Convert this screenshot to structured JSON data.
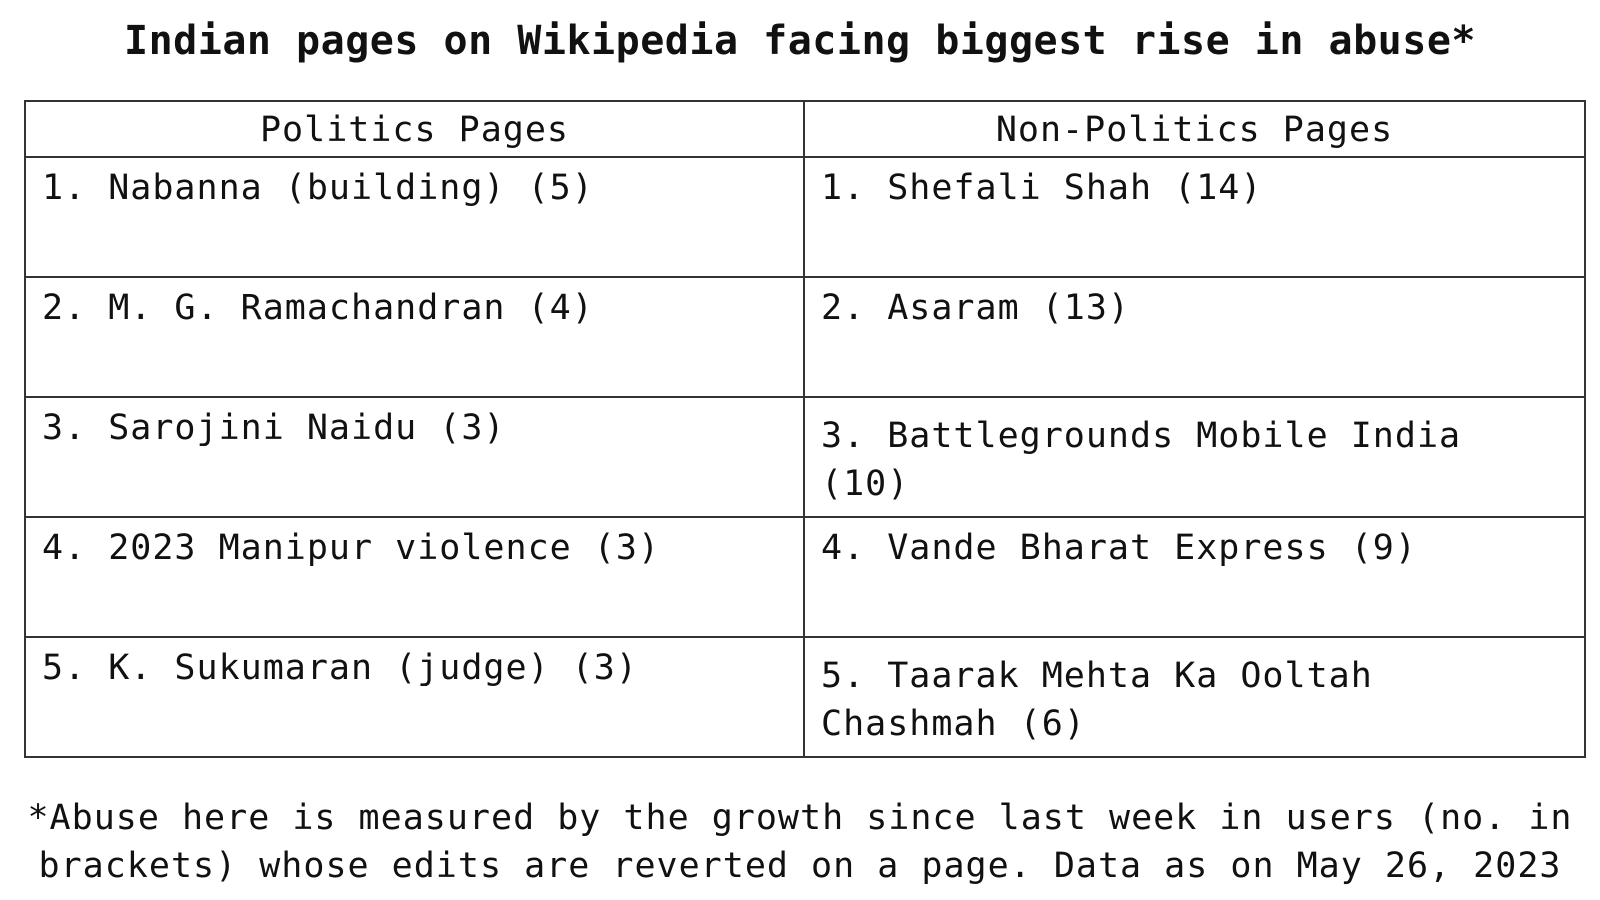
{
  "title": "Indian pages on Wikipedia facing biggest rise in abuse*",
  "table": {
    "headers": [
      "Politics Pages",
      "Non-Politics Pages"
    ],
    "politics": [
      "1. Nabanna (building) (5)",
      "2. M. G. Ramachandran (4)",
      "3. Sarojini Naidu (3)",
      "4. 2023 Manipur violence (3)",
      "5. K. Sukumaran (judge) (3)"
    ],
    "non_politics": [
      "1. Shefali Shah (14)",
      "2. Asaram (13)",
      "3. Battlegrounds Mobile India (10)",
      "4. Vande Bharat Express (9)",
      "5. Taarak Mehta Ka Ooltah Chashmah (6)"
    ]
  },
  "footnote": {
    "line1": "*Abuse here is measured by the growth since last week in users (no. in",
    "line2": "brackets) whose edits are reverted on a page. Data as on May 26, 2023"
  }
}
